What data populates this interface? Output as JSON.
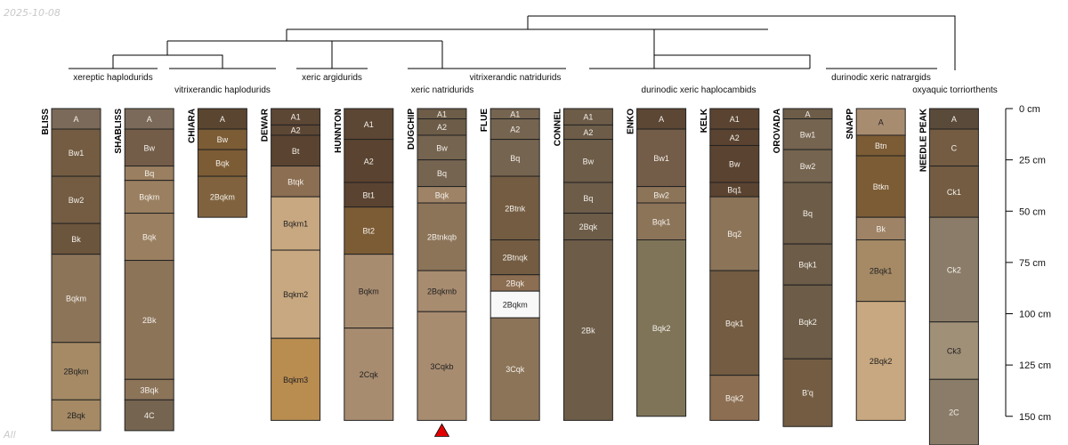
{
  "meta": {
    "date": "2025-10-08",
    "footer": "All"
  },
  "depth_axis": {
    "unit": "cm",
    "ticks": [
      0,
      25,
      50,
      75,
      100,
      125,
      150
    ]
  },
  "taxa": [
    "xereptic haplodurids",
    "vitrixerandic haplodurids",
    "xeric argidurids",
    "xeric natridurids",
    "vitrixerandic natridurids",
    "durinodic xeric haplocambids",
    "durinodic xeric natrargids",
    "oxyaquic torriorthents"
  ],
  "profiles": [
    {
      "name": "BLISS",
      "bottom": 157,
      "horizons": [
        {
          "name": "A",
          "top": 0,
          "color": "#7b6a59"
        },
        {
          "name": "Bw1",
          "top": 10,
          "color": "#735c42"
        },
        {
          "name": "Bw2",
          "top": 33,
          "color": "#735c42"
        },
        {
          "name": "Bk",
          "top": 56,
          "color": "#6c553d"
        },
        {
          "name": "Bqkm",
          "top": 71,
          "color": "#8c7459"
        },
        {
          "name": "2Bqkm",
          "top": 114,
          "color": "#a58a65"
        },
        {
          "name": "2Bqk",
          "top": 142,
          "color": "#a58a65"
        }
      ]
    },
    {
      "name": "SHABLISS",
      "bottom": 157,
      "horizons": [
        {
          "name": "A",
          "top": 0,
          "color": "#7b6a59"
        },
        {
          "name": "Bw",
          "top": 10,
          "color": "#735c48"
        },
        {
          "name": "Bq",
          "top": 28,
          "color": "#9a7f60"
        },
        {
          "name": "Bqkm",
          "top": 35,
          "color": "#9a7f60"
        },
        {
          "name": "Bqk",
          "top": 51,
          "color": "#9a7f60"
        },
        {
          "name": "2Bk",
          "top": 74,
          "color": "#8c7459"
        },
        {
          "name": "3Bqk",
          "top": 132,
          "color": "#8c7459"
        },
        {
          "name": "4C",
          "top": 142,
          "color": "#756450"
        }
      ]
    },
    {
      "name": "CHIARA",
      "bottom": 53,
      "horizons": [
        {
          "name": "A",
          "top": 0,
          "color": "#5a4530"
        },
        {
          "name": "Bw",
          "top": 10,
          "color": "#7c5c35"
        },
        {
          "name": "Bqk",
          "top": 20,
          "color": "#7c5c35"
        },
        {
          "name": "2Bqkm",
          "top": 33,
          "color": "#80633e"
        }
      ]
    },
    {
      "name": "DEWAR",
      "bottom": 152,
      "horizons": [
        {
          "name": "A1",
          "top": 0,
          "color": "#5c4634"
        },
        {
          "name": "A2",
          "top": 8,
          "color": "#5c4634"
        },
        {
          "name": "Bt",
          "top": 13,
          "color": "#5a4330"
        },
        {
          "name": "Btqk",
          "top": 28,
          "color": "#8c6e52"
        },
        {
          "name": "Bqkm1",
          "top": 43,
          "color": "#c8a880"
        },
        {
          "name": "Bqkm2",
          "top": 69,
          "color": "#c8a880"
        },
        {
          "name": "Bqkm3",
          "top": 112,
          "color": "#b98c50"
        }
      ]
    },
    {
      "name": "HUNNTON",
      "bottom": 152,
      "horizons": [
        {
          "name": "A1",
          "top": 0,
          "color": "#5c4634"
        },
        {
          "name": "A2",
          "top": 15,
          "color": "#5a4330"
        },
        {
          "name": "Bt1",
          "top": 36,
          "color": "#5a4330"
        },
        {
          "name": "Bt2",
          "top": 48,
          "color": "#7c5c35"
        },
        {
          "name": "Bqkm",
          "top": 71,
          "color": "#a88c70"
        },
        {
          "name": "2Cqk",
          "top": 107,
          "color": "#a88c70"
        }
      ]
    },
    {
      "name": "DUGCHIP",
      "bottom": 152,
      "horizons": [
        {
          "name": "A1",
          "top": 0,
          "color": "#6c5c48"
        },
        {
          "name": "A2",
          "top": 5,
          "color": "#6c5c48"
        },
        {
          "name": "Bw",
          "top": 13,
          "color": "#756450"
        },
        {
          "name": "Bq",
          "top": 25,
          "color": "#756450"
        },
        {
          "name": "Bqk",
          "top": 38,
          "color": "#9e8366"
        },
        {
          "name": "2Btnkqb",
          "top": 46,
          "color": "#8c7459"
        },
        {
          "name": "2Bqkmb",
          "top": 79,
          "color": "#a88c70"
        },
        {
          "name": "3Cqkb",
          "top": 99,
          "color": "#a88c70"
        }
      ]
    },
    {
      "name": "FLUE",
      "bottom": 152,
      "horizons": [
        {
          "name": "A1",
          "top": 0,
          "color": "#756450"
        },
        {
          "name": "A2",
          "top": 5,
          "color": "#756450"
        },
        {
          "name": "Bq",
          "top": 15,
          "color": "#756450"
        },
        {
          "name": "2Btnk",
          "top": 33,
          "color": "#735c42"
        },
        {
          "name": "2Btnqk",
          "top": 64,
          "color": "#735c42"
        },
        {
          "name": "2Bqk",
          "top": 81,
          "color": "#8c6e52"
        },
        {
          "name": "2Bqkm",
          "top": 89,
          "color": "#f8f8f8"
        },
        {
          "name": "3Cqk",
          "top": 102,
          "color": "#8c7459"
        }
      ]
    },
    {
      "name": "CONNEL",
      "bottom": 152,
      "horizons": [
        {
          "name": "A1",
          "top": 0,
          "color": "#6c5c48"
        },
        {
          "name": "A2",
          "top": 8,
          "color": "#6c5c48"
        },
        {
          "name": "Bw",
          "top": 15,
          "color": "#6c5c48"
        },
        {
          "name": "Bq",
          "top": 36,
          "color": "#6c5c48"
        },
        {
          "name": "2Bqk",
          "top": 51,
          "color": "#6c5c48"
        },
        {
          "name": "2Bk",
          "top": 64,
          "color": "#6c5c48"
        }
      ]
    },
    {
      "name": "ENKO",
      "bottom": 150,
      "horizons": [
        {
          "name": "A",
          "top": 0,
          "color": "#5c4634"
        },
        {
          "name": "Bw1",
          "top": 10,
          "color": "#735c48"
        },
        {
          "name": "Bw2",
          "top": 38,
          "color": "#8c7459"
        },
        {
          "name": "Bqk1",
          "top": 46,
          "color": "#8c7459"
        },
        {
          "name": "Bqk2",
          "top": 64,
          "color": "#7f7458"
        }
      ]
    },
    {
      "name": "KELK",
      "bottom": 152,
      "horizons": [
        {
          "name": "A1",
          "top": 0,
          "color": "#5a4330"
        },
        {
          "name": "A2",
          "top": 10,
          "color": "#5a4330"
        },
        {
          "name": "Bw",
          "top": 18,
          "color": "#5a4330"
        },
        {
          "name": "Bq1",
          "top": 36,
          "color": "#5a4330"
        },
        {
          "name": "Bq2",
          "top": 43,
          "color": "#8c7459"
        },
        {
          "name": "Bqk1",
          "top": 79,
          "color": "#735c42"
        },
        {
          "name": "Bqk2",
          "top": 130,
          "color": "#8c6e52"
        }
      ]
    },
    {
      "name": "OROVADA",
      "bottom": 155,
      "horizons": [
        {
          "name": "A",
          "top": 0,
          "color": "#6c5c48"
        },
        {
          "name": "Bw1",
          "top": 5,
          "color": "#756450"
        },
        {
          "name": "Bw2",
          "top": 20,
          "color": "#756450"
        },
        {
          "name": "Bq",
          "top": 36,
          "color": "#6c5c48"
        },
        {
          "name": "Bqk1",
          "top": 66,
          "color": "#6c5c48"
        },
        {
          "name": "Bqk2",
          "top": 86,
          "color": "#6c5c48"
        },
        {
          "name": "B'q",
          "top": 122,
          "color": "#735c42"
        }
      ]
    },
    {
      "name": "SNAPP",
      "bottom": 152,
      "horizons": [
        {
          "name": "A",
          "top": 0,
          "color": "#a88c70"
        },
        {
          "name": "Btn",
          "top": 13,
          "color": "#7c5c35"
        },
        {
          "name": "Btkn",
          "top": 23,
          "color": "#7c5c35"
        },
        {
          "name": "Bk",
          "top": 53,
          "color": "#9e8366"
        },
        {
          "name": "2Bqk1",
          "top": 64,
          "color": "#a58a65"
        },
        {
          "name": "2Bqk2",
          "top": 94,
          "color": "#c8a880"
        }
      ]
    },
    {
      "name": "NEEDLE PEAK",
      "bottom": 165,
      "horizons": [
        {
          "name": "A",
          "top": 0,
          "color": "#5a4a3a"
        },
        {
          "name": "C",
          "top": 10,
          "color": "#735c42"
        },
        {
          "name": "Ck1",
          "top": 28,
          "color": "#735c42"
        },
        {
          "name": "Ck2",
          "top": 53,
          "color": "#8a7c68"
        },
        {
          "name": "Ck3",
          "top": 104,
          "color": "#a09078"
        },
        {
          "name": "2C",
          "top": 132,
          "color": "#8a7c68"
        }
      ]
    }
  ],
  "marker": {
    "profile": "DUGCHIP",
    "color": "#e00000"
  }
}
